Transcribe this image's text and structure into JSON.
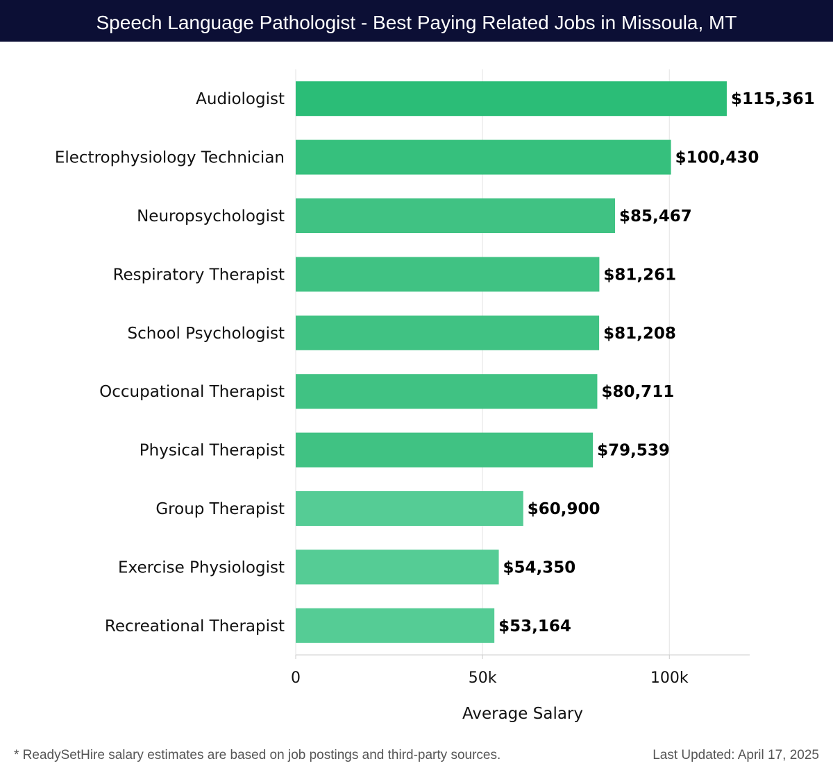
{
  "header": {
    "title": "Speech Language Pathologist - Best Paying Related Jobs in Missoula, MT"
  },
  "chart_data": {
    "type": "bar",
    "orientation": "horizontal",
    "title": "Speech Language Pathologist - Best Paying Related Jobs in Missoula, MT",
    "xlabel": "Average Salary",
    "ylabel": "",
    "xlim": [
      0,
      121500
    ],
    "xticks": [
      0,
      50000,
      100000
    ],
    "xtick_labels": [
      "0",
      "50k",
      "100k"
    ],
    "grid": true,
    "categories": [
      "Audiologist",
      "Electrophysiology Technician",
      "Neuropsychologist",
      "Respiratory Therapist",
      "School Psychologist",
      "Occupational Therapist",
      "Physical Therapist",
      "Group Therapist",
      "Exercise Physiologist",
      "Recreational Therapist"
    ],
    "values": [
      115361,
      100430,
      85467,
      81261,
      81208,
      80711,
      79539,
      60900,
      54350,
      53164
    ],
    "value_labels": [
      "$115,361",
      "$100,430",
      "$85,467",
      "$81,261",
      "$81,208",
      "$80,711",
      "$79,539",
      "$60,900",
      "$54,350",
      "$53,164"
    ],
    "bar_colors": [
      "#2bbd77",
      "#36c07d",
      "#40c283",
      "#40c283",
      "#40c283",
      "#40c283",
      "#40c283",
      "#55cc95",
      "#55cc95",
      "#55cc95"
    ]
  },
  "footer": {
    "note": "* ReadySetHire salary estimates are based on job postings and third-party sources.",
    "updated": "Last Updated: April 17, 2025"
  }
}
